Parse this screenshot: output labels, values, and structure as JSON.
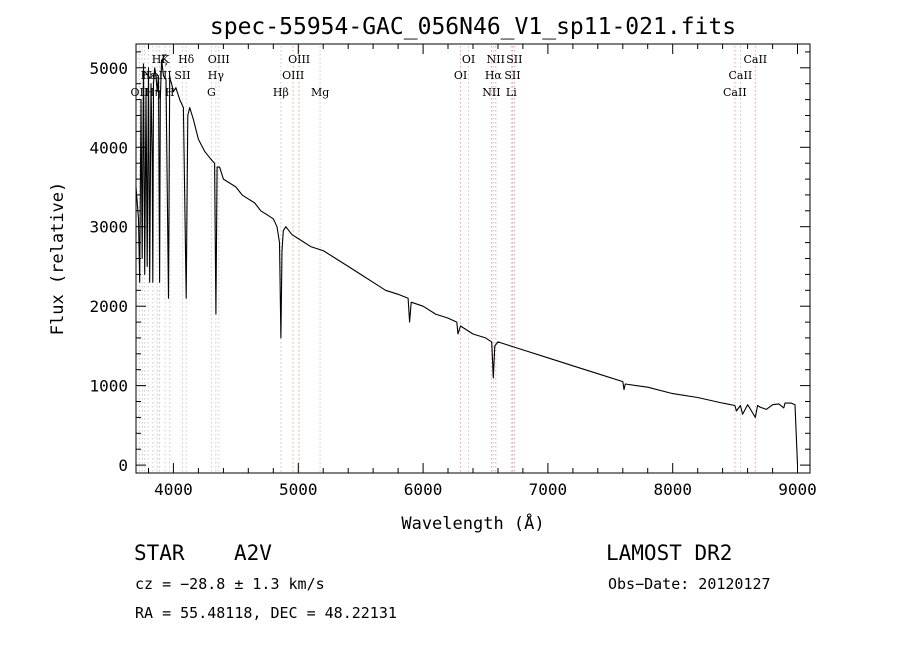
{
  "chart_data": {
    "type": "line",
    "title": "spec-55954-GAC_056N46_V1_sp11-021.fits",
    "xlabel": "Wavelength (Å)",
    "ylabel": "Flux (relative)",
    "xlim": [
      3700,
      9100
    ],
    "ylim": [
      -100,
      5300
    ],
    "xticks": [
      4000,
      5000,
      6000,
      7000,
      8000,
      9000
    ],
    "yticks": [
      0,
      1000,
      2000,
      3000,
      4000,
      5000
    ],
    "grid": false,
    "series": [
      {
        "x": [
          3700,
          3720,
          3730,
          3740,
          3750,
          3760,
          3770,
          3780,
          3790,
          3800,
          3810,
          3820,
          3830,
          3835,
          3840,
          3850,
          3860,
          3870,
          3880,
          3889,
          3895,
          3905,
          3920,
          3940,
          3960,
          3970,
          3975,
          3985,
          4000,
          4020,
          4050,
          4080,
          4102,
          4115,
          4130,
          4160,
          4200,
          4250,
          4300,
          4330,
          4340,
          4350,
          4370,
          4400,
          4450,
          4500,
          4550,
          4600,
          4650,
          4700,
          4750,
          4800,
          4830,
          4850,
          4861,
          4870,
          4880,
          4900,
          4950,
          5000,
          5100,
          5200,
          5300,
          5400,
          5500,
          5600,
          5700,
          5800,
          5880,
          5892,
          5905,
          6000,
          6100,
          6200,
          6270,
          6280,
          6300,
          6400,
          6500,
          6550,
          6563,
          6575,
          6600,
          6700,
          6800,
          7000,
          7200,
          7400,
          7600,
          7610,
          7620,
          7800,
          8000,
          8200,
          8400,
          8498,
          8510,
          8542,
          8560,
          8600,
          8620,
          8662,
          8680,
          8700,
          8750,
          8800,
          8850,
          8890,
          8900,
          8950,
          8980,
          9000
        ],
        "values": [
          3500,
          3100,
          2300,
          4600,
          2600,
          5050,
          2400,
          4700,
          2500,
          5000,
          2300,
          4800,
          3900,
          2300,
          4800,
          5000,
          4900,
          4700,
          4900,
          2300,
          4600,
          5100,
          4900,
          4850,
          2100,
          4900,
          4850,
          4800,
          4700,
          4750,
          4600,
          4500,
          2100,
          4400,
          4500,
          4350,
          4100,
          3950,
          3850,
          3800,
          1900,
          3750,
          3750,
          3600,
          3550,
          3500,
          3400,
          3350,
          3300,
          3200,
          3150,
          3100,
          3000,
          2800,
          1600,
          2700,
          2950,
          3000,
          2900,
          2850,
          2750,
          2700,
          2600,
          2500,
          2400,
          2300,
          2200,
          2150,
          2100,
          1800,
          2050,
          2000,
          1900,
          1850,
          1800,
          1650,
          1750,
          1650,
          1600,
          1550,
          1100,
          1500,
          1550,
          1500,
          1450,
          1350,
          1250,
          1150,
          1050,
          950,
          1020,
          980,
          900,
          850,
          780,
          750,
          680,
          750,
          640,
          760,
          710,
          600,
          750,
          730,
          700,
          760,
          770,
          720,
          780,
          780,
          760,
          0
        ]
      }
    ],
    "lines": [
      {
        "x": 3727,
        "color": "#c8c8c8",
        "label": "OII",
        "row": 3
      },
      {
        "x": 3750,
        "color": "#c8c8c8",
        "label": "",
        "row": 0
      },
      {
        "x": 3770,
        "color": "#c8c8c8",
        "label": "",
        "row": 0
      },
      {
        "x": 3798,
        "color": "#c8c8c8",
        "label": "Hε",
        "row": 2
      },
      {
        "x": 3835,
        "color": "#c8c8c8",
        "label": "Hη",
        "row": 3
      },
      {
        "x": 3869,
        "color": "#c8c8c8",
        "label": "NeIII",
        "row": 2
      },
      {
        "x": 3889,
        "color": "#c8c8c8",
        "label": "Hζ",
        "row": 1
      },
      {
        "x": 3934,
        "color": "#c8c8c8",
        "label": "K",
        "row": 1
      },
      {
        "x": 3970,
        "color": "#c8c8c8",
        "label": "H",
        "row": 3
      },
      {
        "x": 4072,
        "color": "#c8c8c8",
        "label": "SII",
        "row": 2
      },
      {
        "x": 4102,
        "color": "#c8c8c8",
        "label": "Hδ",
        "row": 1
      },
      {
        "x": 4304,
        "color": "#c8c8c8",
        "label": "G",
        "row": 3
      },
      {
        "x": 4340,
        "color": "#c8c8c8",
        "label": "Hγ",
        "row": 2
      },
      {
        "x": 4363,
        "color": "#c8c8c8",
        "label": "OIII",
        "row": 1
      },
      {
        "x": 4861,
        "color": "#c8c8c8",
        "label": "Hβ",
        "row": 3
      },
      {
        "x": 4959,
        "color": "#e8a0a0",
        "label": "OIII",
        "row": 2
      },
      {
        "x": 5007,
        "color": "#e8a0a0",
        "label": "OIII",
        "row": 1
      },
      {
        "x": 5175,
        "color": "#c8c8c8",
        "label": "Mg",
        "row": 3
      },
      {
        "x": 6300,
        "color": "#e8a0a0",
        "label": "OI",
        "row": 2
      },
      {
        "x": 6364,
        "color": "#c8c8c8",
        "label": "OI",
        "row": 1
      },
      {
        "x": 6548,
        "color": "#e8a0a0",
        "label": "NII",
        "row": 3
      },
      {
        "x": 6563,
        "color": "#c8c8c8",
        "label": "Hα",
        "row": 2
      },
      {
        "x": 6583,
        "color": "#e8a0a0",
        "label": "NII",
        "row": 1
      },
      {
        "x": 6707,
        "color": "#c8c8c8",
        "label": "Li",
        "row": 3
      },
      {
        "x": 6716,
        "color": "#e8a0a0",
        "label": "SII",
        "row": 2
      },
      {
        "x": 6731,
        "color": "#e8a0a0",
        "label": "SII",
        "row": 1
      },
      {
        "x": 8498,
        "color": "#e8a0a0",
        "label": "CaII",
        "row": 3
      },
      {
        "x": 8542,
        "color": "#c8c8c8",
        "label": "CaII",
        "row": 2
      },
      {
        "x": 8662,
        "color": "#e8a0a0",
        "label": "CaII",
        "row": 1
      }
    ]
  },
  "footer": {
    "object_type": "STAR",
    "subclass": "A2V",
    "survey": "LAMOST DR2",
    "cz": "cz = −28.8 ± 1.3 km/s",
    "obs_date": "Obs−Date: 20120127",
    "coords": "RA =  55.48118, DEC =  48.22131"
  }
}
